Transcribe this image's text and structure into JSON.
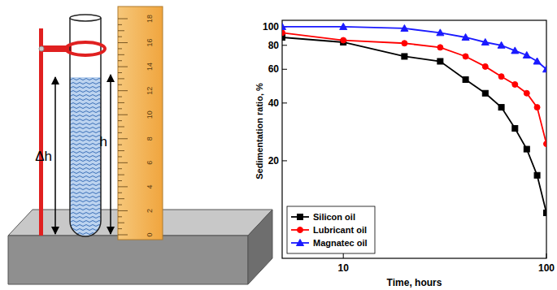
{
  "chart_data": {
    "type": "line",
    "x_label": "Time, hours",
    "y_label": "Sedimentation ratio, %",
    "x": [
      5,
      10,
      20,
      30,
      40,
      50,
      60,
      70,
      80,
      90,
      100
    ],
    "series": [
      {
        "name": "Silicon oil",
        "color": "#000000",
        "marker": "square",
        "values": [
          88,
          83,
          70,
          66,
          53,
          45,
          38,
          29.5,
          23,
          16.8,
          10.7
        ]
      },
      {
        "name": "Lubricant oil",
        "color": "#ff0000",
        "marker": "circle",
        "values": [
          93,
          85,
          82,
          78,
          70,
          62,
          55,
          50,
          45,
          38,
          24.5
        ]
      },
      {
        "name": "Magnatec oil",
        "color": "#1a1aff",
        "marker": "triangle",
        "values": [
          100,
          100,
          98,
          93,
          88,
          83,
          80,
          75,
          71,
          66,
          60
        ]
      }
    ],
    "xlim": [
      5,
      100
    ],
    "xticks": [
      10,
      100
    ],
    "ylim": [
      6.2,
      108
    ],
    "yticks": [
      20,
      40,
      60,
      80,
      100
    ],
    "log": true,
    "grid": false,
    "legend": "lower left"
  },
  "diagram": {
    "delta_label": "Δh",
    "height_label": "h",
    "ruler_labels": [
      0,
      2,
      4,
      6,
      8,
      10,
      12,
      14,
      16,
      18
    ]
  }
}
